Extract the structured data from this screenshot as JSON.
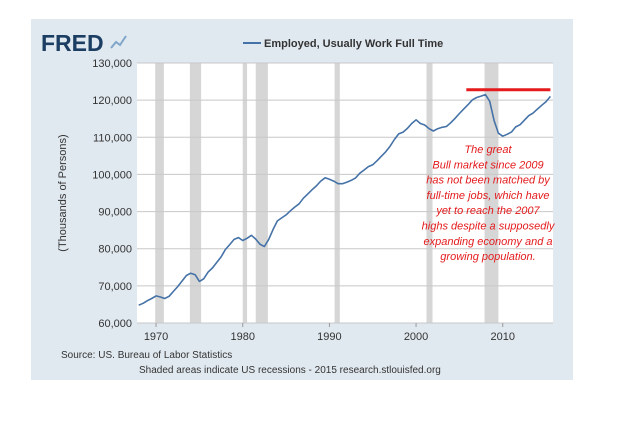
{
  "logo": {
    "text": "FRED"
  },
  "chart_data": {
    "type": "line",
    "title": "Employed, Usually Work Full Time",
    "legend_position": "top-center",
    "ylabel": "(Thousands of Persons)",
    "xlabel": "",
    "xlim": [
      1967.8,
      2015.8
    ],
    "ylim": [
      60000,
      130000
    ],
    "x_ticks": [
      1970,
      1980,
      1990,
      2000,
      2010
    ],
    "x_tick_labels": [
      "1970",
      "1980",
      "1990",
      "2000",
      "2010"
    ],
    "y_ticks": [
      60000,
      70000,
      80000,
      90000,
      100000,
      110000,
      120000,
      130000
    ],
    "y_tick_labels": [
      "60,000",
      "70,000",
      "80,000",
      "90,000",
      "100,000",
      "110,000",
      "120,000",
      "130,000"
    ],
    "grid": true,
    "colors": {
      "series": "#4572a7",
      "annotation": "#e41a1c",
      "recession": "#d6d6d6",
      "plot_bg": "#ffffff",
      "frame_bg": "#e1e9f0"
    },
    "recessions": [
      [
        1969.9,
        1970.9
      ],
      [
        1973.9,
        1975.2
      ],
      [
        1980.0,
        1980.5
      ],
      [
        1981.5,
        1982.9
      ],
      [
        1990.6,
        1991.2
      ],
      [
        2001.2,
        2001.9
      ],
      [
        2007.9,
        2009.5
      ]
    ],
    "series": [
      {
        "name": "Employed, Usually Work Full Time",
        "x": [
          1968.0,
          1968.5,
          1969.0,
          1969.5,
          1970.0,
          1970.5,
          1971.0,
          1971.5,
          1972.0,
          1972.5,
          1973.0,
          1973.5,
          1974.0,
          1974.5,
          1975.0,
          1975.5,
          1976.0,
          1976.5,
          1977.0,
          1977.5,
          1978.0,
          1978.5,
          1979.0,
          1979.5,
          1980.0,
          1980.5,
          1981.0,
          1981.5,
          1982.0,
          1982.5,
          1983.0,
          1983.5,
          1984.0,
          1984.5,
          1985.0,
          1985.5,
          1986.0,
          1986.5,
          1987.0,
          1987.5,
          1988.0,
          1988.5,
          1989.0,
          1989.5,
          1990.0,
          1990.5,
          1991.0,
          1991.5,
          1992.0,
          1992.5,
          1993.0,
          1993.5,
          1994.0,
          1994.5,
          1995.0,
          1995.5,
          1996.0,
          1996.5,
          1997.0,
          1997.5,
          1998.0,
          1998.5,
          1999.0,
          1999.5,
          2000.0,
          2000.5,
          2001.0,
          2001.5,
          2002.0,
          2002.5,
          2003.0,
          2003.5,
          2004.0,
          2004.5,
          2005.0,
          2005.5,
          2006.0,
          2006.5,
          2007.0,
          2007.5,
          2008.0,
          2008.5,
          2009.0,
          2009.5,
          2010.0,
          2010.5,
          2011.0,
          2011.5,
          2012.0,
          2012.5,
          2013.0,
          2013.5,
          2014.0,
          2014.5,
          2015.0,
          2015.5
        ],
        "values": [
          64800,
          65300,
          66000,
          66600,
          67300,
          67000,
          66600,
          67200,
          68500,
          69800,
          71300,
          72800,
          73400,
          73000,
          71200,
          71900,
          73700,
          74800,
          76300,
          77800,
          79800,
          81100,
          82500,
          83000,
          82200,
          82800,
          83600,
          82600,
          81200,
          80600,
          82500,
          85200,
          87500,
          88300,
          89100,
          90200,
          91200,
          92100,
          93600,
          94700,
          95900,
          96900,
          98200,
          99100,
          98700,
          98200,
          97500,
          97500,
          97900,
          98400,
          99000,
          100300,
          101200,
          102100,
          102600,
          103700,
          104900,
          106100,
          107600,
          109400,
          110900,
          111400,
          112400,
          113700,
          114700,
          113700,
          113300,
          112300,
          111700,
          112300,
          112700,
          112900,
          113900,
          115100,
          116400,
          117600,
          118800,
          120100,
          120700,
          121100,
          121500,
          119700,
          114500,
          111100,
          110300,
          110800,
          111400,
          112800,
          113400,
          114600,
          115800,
          116500,
          117600,
          118600,
          119600,
          121000
        ]
      }
    ],
    "annotation_line": {
      "x": [
        2005.8,
        2015.5
      ],
      "y": 122800
    },
    "annotation_text": [
      "The great",
      "Bull market since 2009",
      "has not been matched by",
      "full-time jobs, which have",
      "yet to reach  the 2007",
      "highs despite a supposedly",
      "expanding economy and a",
      "growing population."
    ]
  },
  "footer": {
    "source": "Source: US. Bureau of Labor Statistics",
    "note": "Shaded areas indicate US recessions - 2015 research.stlouisfed.org"
  }
}
